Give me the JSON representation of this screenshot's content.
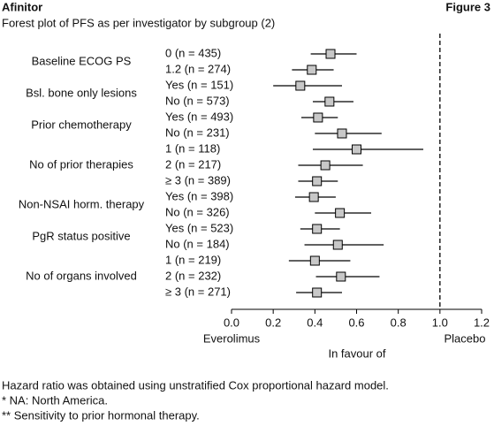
{
  "chart_data": {
    "type": "forest",
    "brand": "Afinitor",
    "figure": "Figure 3",
    "title": "Forest plot of PFS as per investigator by subgroup (2)",
    "xlabel_left": "Everolimus",
    "xlabel": "In favour of",
    "xlabel_right": "Placebo",
    "xlim": [
      0,
      1.2
    ],
    "xticks": [
      {
        "value": 0,
        "label": "0.0"
      },
      0.2,
      0.4,
      0.6,
      0.8,
      {
        "value": 1,
        "label": "1.0"
      },
      1.2
    ],
    "reference_line": 1,
    "box_color": "#c8c8c8",
    "subgroups": [
      {
        "name": "Baseline ECOG PS",
        "rows": [
          {
            "label": "0 (n = 435)",
            "estimate": 0.475,
            "lower": 0.38,
            "upper": 0.6
          },
          {
            "label": "1.2 (n = 274)",
            "estimate": 0.385,
            "lower": 0.29,
            "upper": 0.49
          }
        ]
      },
      {
        "name": "Bsl. bone only lesions",
        "rows": [
          {
            "label": "Yes (n = 151)",
            "estimate": 0.33,
            "lower": 0.2,
            "upper": 0.53
          },
          {
            "label": "No (n = 573)",
            "estimate": 0.47,
            "lower": 0.39,
            "upper": 0.585
          }
        ]
      },
      {
        "name": "Prior chemotherapy",
        "rows": [
          {
            "label": "Yes (n = 493)",
            "estimate": 0.415,
            "lower": 0.335,
            "upper": 0.51
          },
          {
            "label": "No (n = 231)",
            "estimate": 0.53,
            "lower": 0.4,
            "upper": 0.72
          }
        ]
      },
      {
        "name": "No of prior therapies",
        "rows": [
          {
            "label": "1 (n = 118)",
            "estimate": 0.6,
            "lower": 0.39,
            "upper": 0.92
          },
          {
            "label": "2 (n = 217)",
            "estimate": 0.45,
            "lower": 0.32,
            "upper": 0.63
          },
          {
            "label": "≥ 3 (n = 389)",
            "estimate": 0.41,
            "lower": 0.32,
            "upper": 0.51
          }
        ]
      },
      {
        "name": "Non-NSAI horm. therapy",
        "rows": [
          {
            "label": "Yes (n = 398)",
            "estimate": 0.395,
            "lower": 0.305,
            "upper": 0.5
          },
          {
            "label": "No (n = 326)",
            "estimate": 0.52,
            "lower": 0.4,
            "upper": 0.67
          }
        ]
      },
      {
        "name": "PgR status positive",
        "rows": [
          {
            "label": "Yes (n = 523)",
            "estimate": 0.41,
            "lower": 0.33,
            "upper": 0.52
          },
          {
            "label": "No (n = 184)",
            "estimate": 0.51,
            "lower": 0.35,
            "upper": 0.73
          }
        ]
      },
      {
        "name": "No of organs involved",
        "rows": [
          {
            "label": "1 (n = 219)",
            "estimate": 0.4,
            "lower": 0.275,
            "upper": 0.57
          },
          {
            "label": "2 (n = 232)",
            "estimate": 0.525,
            "lower": 0.405,
            "upper": 0.71
          },
          {
            "label": "≥ 3 (n = 271)",
            "estimate": 0.41,
            "lower": 0.31,
            "upper": 0.53
          }
        ]
      }
    ],
    "footnotes": [
      "Hazard ratio was obtained using unstratified Cox proportional hazard model.",
      "* NA: North America.",
      "** Sensitivity to prior hormonal therapy."
    ]
  }
}
